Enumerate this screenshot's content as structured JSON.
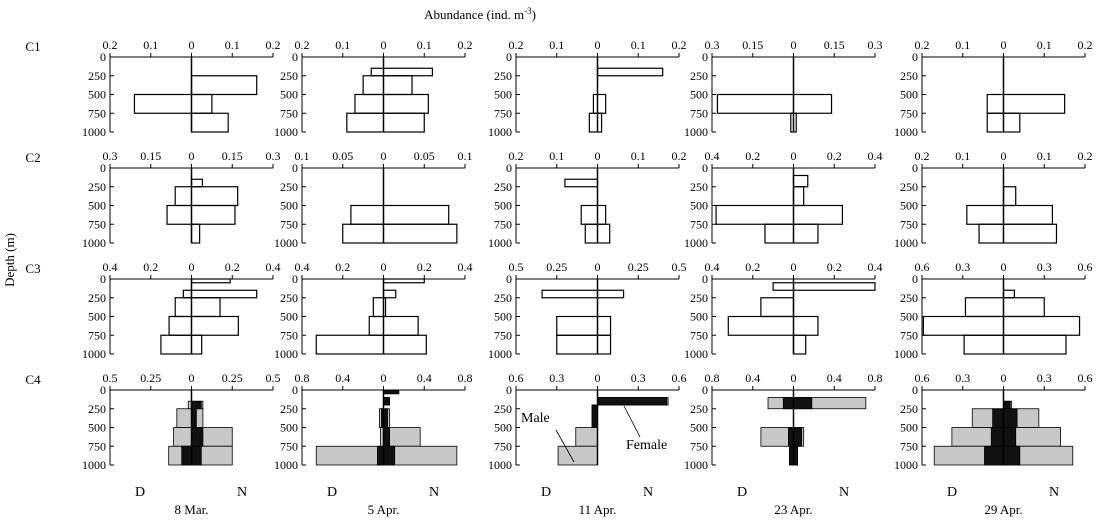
{
  "figure": {
    "top_title": "Abundance (ind.  m",
    "top_title_sup": "-3",
    "top_title_tail": ")",
    "ylabel": "Depth (m)",
    "dates": [
      "8 Mar.",
      "5 Apr.",
      "11 Apr.",
      "23 Apr.",
      "29 Apr."
    ],
    "rows": [
      "C1",
      "C2",
      "C3",
      "C4"
    ],
    "day_label": "D",
    "night_label": "N",
    "male_label": "Male",
    "female_label": "Female",
    "depth_ticks": [
      "0",
      "250",
      "500",
      "750",
      "1000"
    ]
  },
  "chart_data": {
    "type": "histogram",
    "description_axes": "Each panel: x = abundance (ind. m^-3), day (D) plotted to the left of 0, night (N) to the right; y = depth (m), 0 at top to 1000 at bottom.",
    "depth_bins": [
      [
        0,
        250
      ],
      [
        250,
        500
      ],
      [
        500,
        750
      ],
      [
        750,
        1000
      ]
    ],
    "panels": [
      {
        "row": "C1",
        "date": "8 Mar.",
        "xmax": 0.2,
        "ticks": [
          "0.2",
          "0.1",
          "0",
          "0.1",
          "0.2"
        ],
        "bars": [
          {
            "dmin": 250,
            "dmax": 500,
            "day": 0.0,
            "night": 0.16
          },
          {
            "dmin": 500,
            "dmax": 750,
            "day": 0.14,
            "night": 0.05
          },
          {
            "dmin": 750,
            "dmax": 1000,
            "day": 0.0,
            "night": 0.09
          }
        ]
      },
      {
        "row": "C1",
        "date": "5 Apr.",
        "xmax": 0.2,
        "ticks": [
          "0.2",
          "0.1",
          "0",
          "0.1",
          "0.2"
        ],
        "bars": [
          {
            "dmin": 150,
            "dmax": 250,
            "day": 0.03,
            "night": 0.12
          },
          {
            "dmin": 250,
            "dmax": 500,
            "day": 0.05,
            "night": 0.07
          },
          {
            "dmin": 500,
            "dmax": 750,
            "day": 0.07,
            "night": 0.11
          },
          {
            "dmin": 750,
            "dmax": 1000,
            "day": 0.09,
            "night": 0.1
          }
        ]
      },
      {
        "row": "C1",
        "date": "11 Apr.",
        "xmax": 0.2,
        "ticks": [
          "0.2",
          "0.1",
          "0",
          "0.1",
          "0.2"
        ],
        "bars": [
          {
            "dmin": 150,
            "dmax": 250,
            "day": 0.0,
            "night": 0.16
          },
          {
            "dmin": 500,
            "dmax": 750,
            "day": 0.01,
            "night": 0.02
          },
          {
            "dmin": 750,
            "dmax": 1000,
            "day": 0.02,
            "night": 0.01
          }
        ]
      },
      {
        "row": "C1",
        "date": "23 Apr.",
        "xmax": 0.3,
        "ticks": [
          "0.3",
          "0.15",
          "0",
          "0.15",
          "0.3"
        ],
        "bars": [
          {
            "dmin": 500,
            "dmax": 750,
            "day": 0.28,
            "night": 0.14
          },
          {
            "dmin": 750,
            "dmax": 1000,
            "day": 0.01,
            "night": 0.01
          }
        ]
      },
      {
        "row": "C1",
        "date": "29 Apr.",
        "xmax": 0.2,
        "ticks": [
          "0.2",
          "0.1",
          "0",
          "0.1",
          "0.2"
        ],
        "bars": [
          {
            "dmin": 500,
            "dmax": 750,
            "day": 0.04,
            "night": 0.15
          },
          {
            "dmin": 750,
            "dmax": 1000,
            "day": 0.04,
            "night": 0.04
          }
        ]
      },
      {
        "row": "C2",
        "date": "8 Mar.",
        "xmax": 0.3,
        "ticks": [
          "0.3",
          "0.15",
          "0",
          "0.15",
          "0.3"
        ],
        "bars": [
          {
            "dmin": 150,
            "dmax": 250,
            "day": 0.0,
            "night": 0.04
          },
          {
            "dmin": 250,
            "dmax": 500,
            "day": 0.06,
            "night": 0.17
          },
          {
            "dmin": 500,
            "dmax": 750,
            "day": 0.09,
            "night": 0.16
          },
          {
            "dmin": 750,
            "dmax": 1000,
            "day": 0.0,
            "night": 0.03
          }
        ]
      },
      {
        "row": "C2",
        "date": "5 Apr.",
        "xmax": 0.1,
        "ticks": [
          "0.1",
          "0.05",
          "0",
          "0.05",
          "0.1"
        ],
        "bars": [
          {
            "dmin": 500,
            "dmax": 750,
            "day": 0.04,
            "night": 0.08
          },
          {
            "dmin": 750,
            "dmax": 1000,
            "day": 0.05,
            "night": 0.09
          }
        ]
      },
      {
        "row": "C2",
        "date": "11 Apr.",
        "xmax": 0.2,
        "ticks": [
          "0.2",
          "0.1",
          "0",
          "0.1",
          "0.2"
        ],
        "bars": [
          {
            "dmin": 150,
            "dmax": 250,
            "day": 0.08,
            "night": 0.0
          },
          {
            "dmin": 500,
            "dmax": 750,
            "day": 0.04,
            "night": 0.02
          },
          {
            "dmin": 750,
            "dmax": 1000,
            "day": 0.03,
            "night": 0.03
          }
        ]
      },
      {
        "row": "C2",
        "date": "23 Apr.",
        "xmax": 0.4,
        "ticks": [
          "0.4",
          "0.2",
          "0",
          "0.2",
          "0.4"
        ],
        "bars": [
          {
            "dmin": 100,
            "dmax": 250,
            "day": 0.0,
            "night": 0.07
          },
          {
            "dmin": 250,
            "dmax": 500,
            "day": 0.0,
            "night": 0.05
          },
          {
            "dmin": 500,
            "dmax": 750,
            "day": 0.38,
            "night": 0.24
          },
          {
            "dmin": 750,
            "dmax": 1000,
            "day": 0.14,
            "night": 0.12
          }
        ]
      },
      {
        "row": "C2",
        "date": "29 Apr.",
        "xmax": 0.2,
        "ticks": [
          "0.2",
          "0.1",
          "0",
          "0.1",
          "0.2"
        ],
        "bars": [
          {
            "dmin": 250,
            "dmax": 500,
            "day": 0.0,
            "night": 0.03
          },
          {
            "dmin": 500,
            "dmax": 750,
            "day": 0.09,
            "night": 0.12
          },
          {
            "dmin": 750,
            "dmax": 1000,
            "day": 0.06,
            "night": 0.13
          }
        ]
      },
      {
        "row": "C3",
        "date": "8 Mar.",
        "xmax": 0.4,
        "ticks": [
          "0.4",
          "0.2",
          "0",
          "0.2",
          "0.4"
        ],
        "bars": [
          {
            "dmin": 0,
            "dmax": 50,
            "day": 0.0,
            "night": 0.19
          },
          {
            "dmin": 150,
            "dmax": 250,
            "day": 0.04,
            "night": 0.32
          },
          {
            "dmin": 250,
            "dmax": 500,
            "day": 0.08,
            "night": 0.14
          },
          {
            "dmin": 500,
            "dmax": 750,
            "day": 0.11,
            "night": 0.23
          },
          {
            "dmin": 750,
            "dmax": 1000,
            "day": 0.15,
            "night": 0.05
          }
        ]
      },
      {
        "row": "C3",
        "date": "5 Apr.",
        "xmax": 0.4,
        "ticks": [
          "0.4",
          "0.2",
          "0",
          "0.2",
          "0.4"
        ],
        "bars": [
          {
            "dmin": 0,
            "dmax": 50,
            "day": 0.0,
            "night": 0.2
          },
          {
            "dmin": 150,
            "dmax": 250,
            "day": 0.0,
            "night": 0.06
          },
          {
            "dmin": 250,
            "dmax": 500,
            "day": 0.05,
            "night": 0.01
          },
          {
            "dmin": 500,
            "dmax": 750,
            "day": 0.07,
            "night": 0.17
          },
          {
            "dmin": 750,
            "dmax": 1000,
            "day": 0.33,
            "night": 0.21
          }
        ]
      },
      {
        "row": "C3",
        "date": "11 Apr.",
        "xmax": 0.5,
        "ticks": [
          "0.5",
          "0.25",
          "0",
          "0.25",
          "0.5"
        ],
        "bars": [
          {
            "dmin": 150,
            "dmax": 250,
            "day": 0.34,
            "night": 0.16
          },
          {
            "dmin": 500,
            "dmax": 750,
            "day": 0.25,
            "night": 0.08
          },
          {
            "dmin": 750,
            "dmax": 1000,
            "day": 0.25,
            "night": 0.08
          }
        ]
      },
      {
        "row": "C3",
        "date": "23 Apr.",
        "xmax": 0.4,
        "ticks": [
          "0.4",
          "0.2",
          "0",
          "0.2",
          "0.4"
        ],
        "bars": [
          {
            "dmin": 50,
            "dmax": 150,
            "day": 0.1,
            "night": 0.4
          },
          {
            "dmin": 250,
            "dmax": 500,
            "day": 0.16,
            "night": 0.0
          },
          {
            "dmin": 500,
            "dmax": 750,
            "day": 0.32,
            "night": 0.12
          },
          {
            "dmin": 750,
            "dmax": 1000,
            "day": 0.0,
            "night": 0.06
          }
        ]
      },
      {
        "row": "C3",
        "date": "29 Apr.",
        "xmax": 0.6,
        "ticks": [
          "0.6",
          "0.3",
          "0",
          "0.3",
          "0.6"
        ],
        "bars": [
          {
            "dmin": 150,
            "dmax": 250,
            "day": 0.0,
            "night": 0.08
          },
          {
            "dmin": 250,
            "dmax": 500,
            "day": 0.28,
            "night": 0.3
          },
          {
            "dmin": 500,
            "dmax": 750,
            "day": 0.59,
            "night": 0.56
          },
          {
            "dmin": 750,
            "dmax": 1000,
            "day": 0.29,
            "night": 0.46
          }
        ]
      },
      {
        "row": "C4",
        "date": "8 Mar.",
        "xmax": 0.5,
        "ticks": [
          "0.5",
          "0.25",
          "0",
          "0.25",
          "0.5"
        ],
        "bars": [
          {
            "dmin": 150,
            "dmax": 250,
            "total_day": 0.02,
            "total_night": 0.07,
            "female_day": 0.0,
            "female_night": 0.06
          },
          {
            "dmin": 250,
            "dmax": 500,
            "total_day": 0.09,
            "total_night": 0.07,
            "female_day": 0.0,
            "female_night": 0.03
          },
          {
            "dmin": 500,
            "dmax": 750,
            "total_day": 0.11,
            "total_night": 0.25,
            "female_day": 0.0,
            "female_night": 0.07
          },
          {
            "dmin": 750,
            "dmax": 1000,
            "total_day": 0.14,
            "total_night": 0.25,
            "female_day": 0.06,
            "female_night": 0.06
          }
        ]
      },
      {
        "row": "C4",
        "date": "5 Apr.",
        "xmax": 0.8,
        "ticks": [
          "0.8",
          "0.4",
          "0",
          "0.4",
          "0.8"
        ],
        "bars": [
          {
            "dmin": 0,
            "dmax": 50,
            "total_day": 0.0,
            "total_night": 0.15,
            "female_day": 0.0,
            "female_night": 0.15
          },
          {
            "dmin": 100,
            "dmax": 200,
            "total_day": 0.0,
            "total_night": 0.06,
            "female_day": 0.0,
            "female_night": 0.06
          },
          {
            "dmin": 250,
            "dmax": 500,
            "total_day": 0.04,
            "total_night": 0.06,
            "female_day": 0.02,
            "female_night": 0.04
          },
          {
            "dmin": 500,
            "dmax": 750,
            "total_day": 0.03,
            "total_night": 0.36,
            "female_day": 0.0,
            "female_night": 0.06
          },
          {
            "dmin": 750,
            "dmax": 1000,
            "total_day": 0.66,
            "total_night": 0.72,
            "female_day": 0.06,
            "female_night": 0.11
          }
        ]
      },
      {
        "row": "C4",
        "date": "11 Apr.",
        "xmax": 0.6,
        "ticks": [
          "0.6",
          "0.3",
          "0",
          "0.3",
          "0.6"
        ],
        "bars": [
          {
            "dmin": 100,
            "dmax": 200,
            "total_day": 0.0,
            "total_night": 0.52,
            "female_day": 0.0,
            "female_night": 0.51
          },
          {
            "dmin": 200,
            "dmax": 500,
            "total_day": 0.04,
            "total_night": 0.0,
            "female_day": 0.04,
            "female_night": 0.0
          },
          {
            "dmin": 500,
            "dmax": 750,
            "total_day": 0.16,
            "total_night": 0.0,
            "female_day": 0.0,
            "female_night": 0.0
          },
          {
            "dmin": 750,
            "dmax": 1000,
            "total_day": 0.29,
            "total_night": 0.0,
            "female_day": 0.0,
            "female_night": 0.0
          }
        ]
      },
      {
        "row": "C4",
        "date": "23 Apr.",
        "xmax": 0.8,
        "ticks": [
          "0.8",
          "0.4",
          "0",
          "0.4",
          "0.8"
        ],
        "bars": [
          {
            "dmin": 100,
            "dmax": 250,
            "total_day": 0.25,
            "total_night": 0.71,
            "female_day": 0.1,
            "female_night": 0.18
          },
          {
            "dmin": 500,
            "dmax": 750,
            "total_day": 0.32,
            "total_night": 0.1,
            "female_day": 0.05,
            "female_night": 0.08
          },
          {
            "dmin": 750,
            "dmax": 1000,
            "total_day": 0.04,
            "total_night": 0.04,
            "female_day": 0.04,
            "female_night": 0.04
          }
        ]
      },
      {
        "row": "C4",
        "date": "29 Apr.",
        "xmax": 0.6,
        "ticks": [
          "0.6",
          "0.3",
          "0",
          "0.3",
          "0.6"
        ],
        "bars": [
          {
            "dmin": 150,
            "dmax": 250,
            "total_day": 0.0,
            "total_night": 0.06,
            "female_day": 0.0,
            "female_night": 0.05
          },
          {
            "dmin": 250,
            "dmax": 500,
            "total_day": 0.23,
            "total_night": 0.26,
            "female_day": 0.08,
            "female_night": 0.1
          },
          {
            "dmin": 500,
            "dmax": 750,
            "total_day": 0.38,
            "total_night": 0.42,
            "female_day": 0.09,
            "female_night": 0.09
          },
          {
            "dmin": 750,
            "dmax": 1000,
            "total_day": 0.51,
            "total_night": 0.51,
            "female_day": 0.14,
            "female_night": 0.12
          }
        ]
      }
    ]
  }
}
